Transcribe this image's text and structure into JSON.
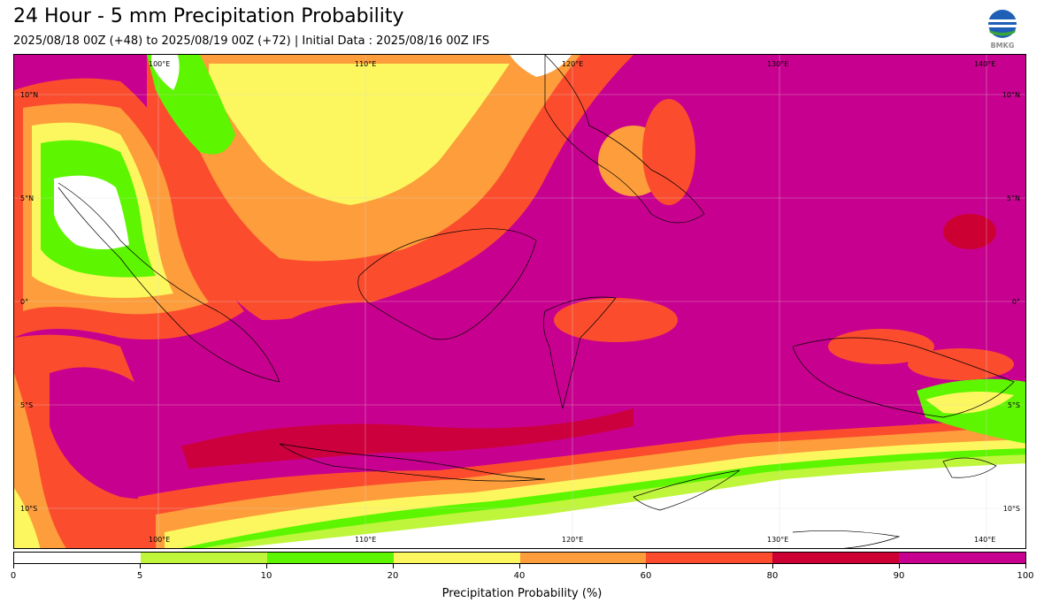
{
  "title": "24 Hour - 5 mm Precipitation Probability",
  "subtitle": "2025/08/18 00Z (+48) to 2025/08/19 00Z (+72) | Initial Data : 2025/08/16 00Z IFS",
  "logo": {
    "text": "BMKG",
    "icon": "bmkg-globe-icon"
  },
  "map": {
    "lon_labels": [
      "100°E",
      "110°E",
      "120°E",
      "130°E",
      "140°E"
    ],
    "lat_labels": [
      "10°N",
      "5°N",
      "0°",
      "5°S",
      "10°S"
    ]
  },
  "colorbar": {
    "title": "Precipitation Probability (%)",
    "ticks": [
      "0",
      "5",
      "10",
      "20",
      "40",
      "60",
      "80",
      "90",
      "100"
    ],
    "colors": [
      "#ffffff",
      "#bff53a",
      "#5df500",
      "#fcf75e",
      "#fd9d3b",
      "#fb4d2e",
      "#cc0033",
      "#c8008f"
    ]
  }
}
